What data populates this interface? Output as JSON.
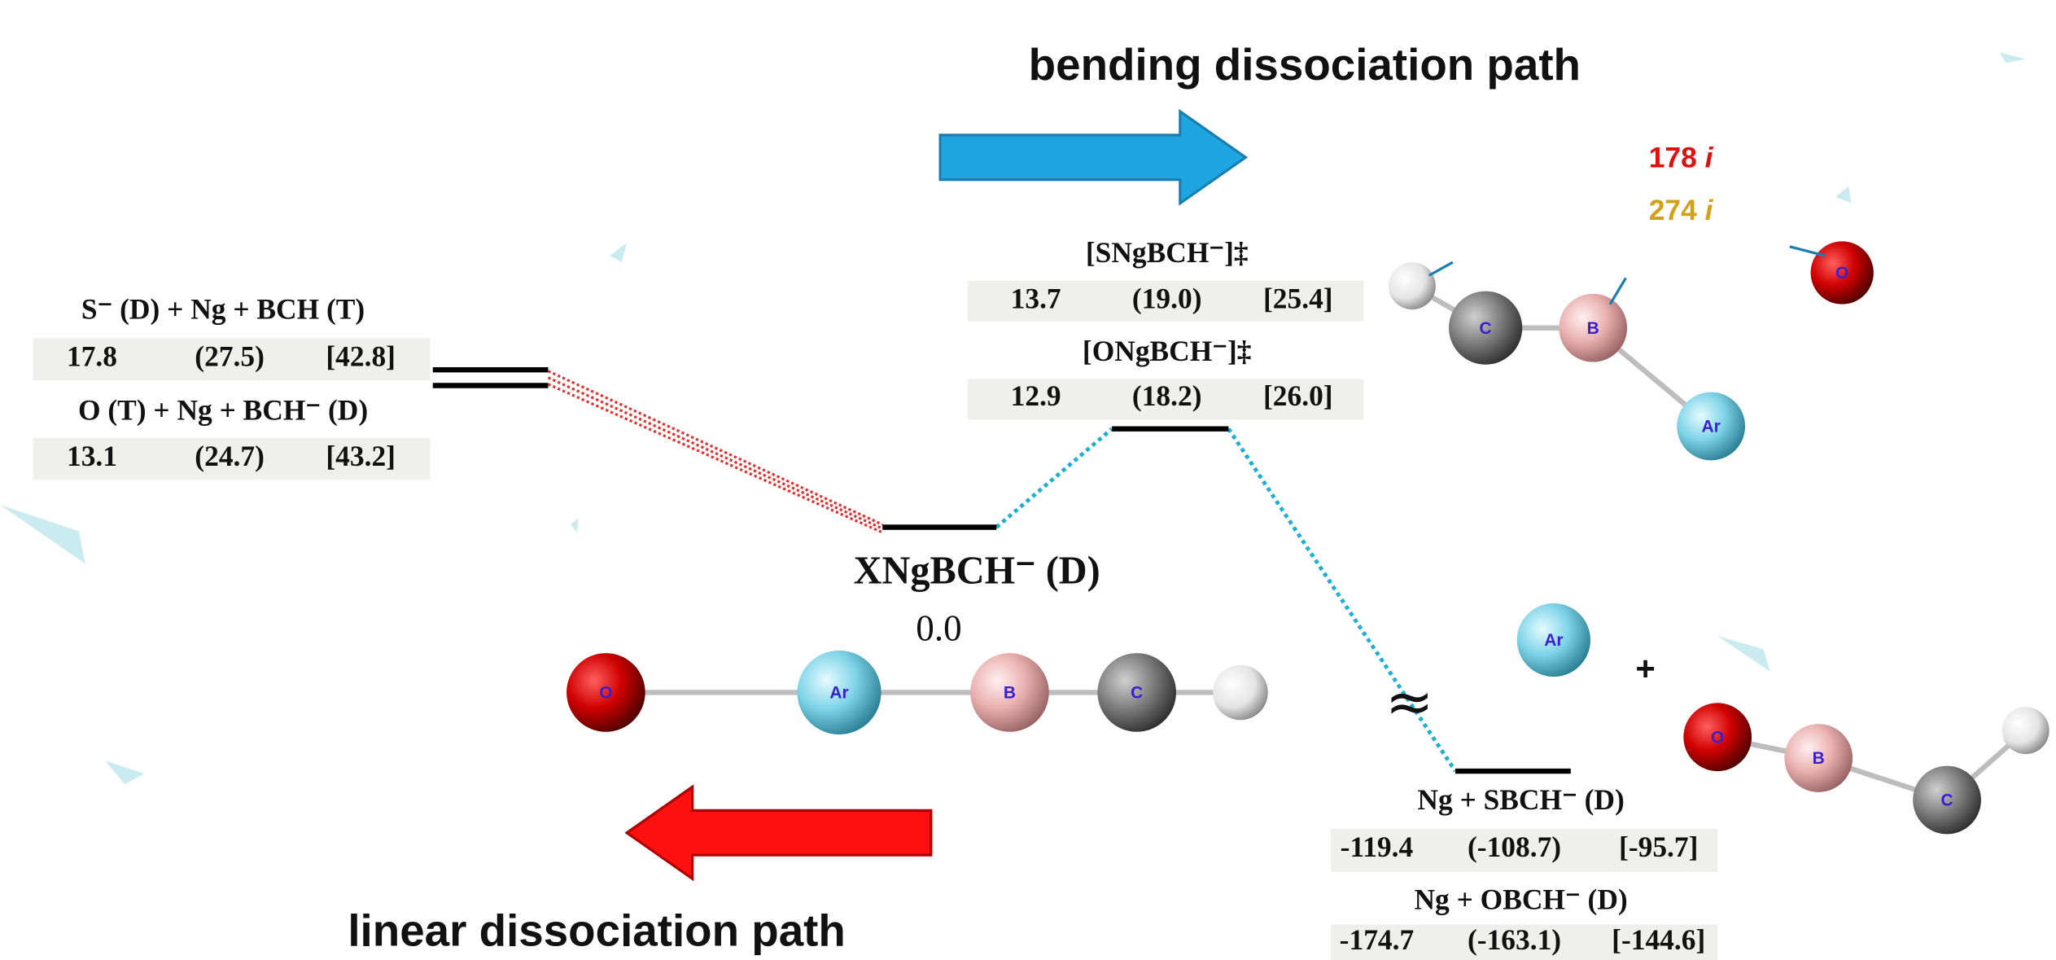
{
  "paths": {
    "bending": "bending dissociation path",
    "linear": "linear dissociation path"
  },
  "frequencies": [
    {
      "number": "178",
      "suffix": "i"
    },
    {
      "number": "274",
      "suffix": "i"
    }
  ],
  "asymptotes": [
    {
      "label": "S⁻ (D) + Ng + BCH (T)",
      "energies": [
        "17.8",
        "(27.5)",
        "[42.8]"
      ]
    },
    {
      "label": "O (T) + Ng + BCH⁻ (D)",
      "energies": [
        "13.1",
        "(24.7)",
        "[43.2]"
      ]
    }
  ],
  "reactant": {
    "label": "XNgBCH⁻ (D)",
    "energy": "0.0"
  },
  "transition_states": [
    {
      "label": "[SNgBCH⁻]‡",
      "energies": [
        "13.7",
        "(19.0)",
        "[25.4]"
      ]
    },
    {
      "label": "[ONgBCH⁻]‡",
      "energies": [
        "12.9",
        "(18.2)",
        "[26.0]"
      ]
    }
  ],
  "products": [
    {
      "label": "Ng + SBCH⁻ (D)",
      "energies": [
        "-119.4",
        "(-108.7)",
        "[-95.7]"
      ]
    },
    {
      "label": "Ng + OBCH⁻ (D)",
      "energies": [
        "-174.7",
        "(-163.1)",
        "[-144.6]"
      ]
    }
  ],
  "axis_break": "≈",
  "plus": "+",
  "molecules": {
    "linear": [
      "O",
      "Ar",
      "B",
      "C"
    ],
    "ts": [
      "C",
      "B",
      "Ar",
      "O"
    ],
    "product_atom": [
      "Ar"
    ],
    "product_molecule": [
      "O",
      "B",
      "C"
    ]
  }
}
